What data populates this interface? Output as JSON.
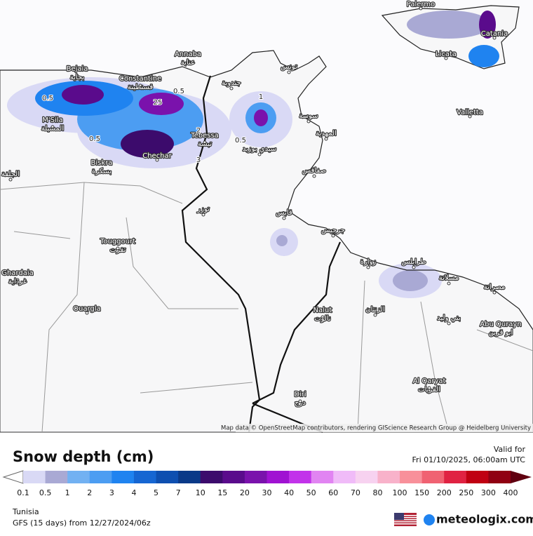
{
  "map": {
    "places": [
      {
        "name": "Palermo"
      },
      {
        "name": "Catania"
      },
      {
        "name": "Licata"
      },
      {
        "name": "Valletta"
      },
      {
        "name": "Annaba",
        "name_ar": "عنابة"
      },
      {
        "name": "Bejaia",
        "name_ar": "بجاية"
      },
      {
        "name": "Constantine",
        "name_ar": "قسنطينة"
      },
      {
        "name": "M'Sila",
        "name_ar": "المسيلة"
      },
      {
        "name": "Biskra",
        "name_ar": "بسكرة"
      },
      {
        "name": "Chechar"
      },
      {
        "name": "Tebessa",
        "name_ar": "تبسة"
      },
      {
        "name": "Touggourt",
        "name_ar": "تقرت"
      },
      {
        "name": "Ghardaia",
        "name_ar": "غرداية"
      },
      {
        "name": "Ouargla"
      },
      {
        "name": "Nalut",
        "name_ar": "نالوت"
      },
      {
        "name": "Al Qaryat",
        "name_ar": "القريات"
      },
      {
        "name": "Abu Qurayn",
        "name_ar": "ابو قرين"
      },
      {
        "name": "Diri",
        "name_ar": "درج"
      },
      {
        "name_ar": "تونس"
      },
      {
        "name_ar": "جندوبة"
      },
      {
        "name_ar": "سوسة"
      },
      {
        "name_ar": "المهدية"
      },
      {
        "name_ar": "سيدي بوزيد"
      },
      {
        "name_ar": "صفاقس"
      },
      {
        "name_ar": "توزر"
      },
      {
        "name_ar": "قابس"
      },
      {
        "name_ar": "جرجيس"
      },
      {
        "name_ar": "زوارة"
      },
      {
        "name_ar": "طرابلس"
      },
      {
        "name_ar": "مسلاتة"
      },
      {
        "name_ar": "مصراتة"
      },
      {
        "name_ar": "الزنتان"
      },
      {
        "name_ar": "بني وليد"
      },
      {
        "name_ar": "الجلفة"
      }
    ],
    "contour_labels": [
      "25",
      "0.5",
      "0.5",
      "2",
      "3",
      "0.5",
      "1",
      "0.5"
    ],
    "attribution": "Map data © OpenStreetMap contributors, rendering GIScience Research Group @ Heidelberg University"
  },
  "legend": {
    "title": "Snow depth (cm)",
    "ticks": [
      0.1,
      0.5,
      1,
      2,
      3,
      4,
      5,
      7,
      10,
      15,
      20,
      30,
      40,
      50,
      60,
      70,
      80,
      100,
      150,
      200,
      250,
      300,
      400
    ],
    "under_color": "#ffffff",
    "colors": [
      "#d9d9f5",
      "#a9a9d4",
      "#72b1f2",
      "#4c9df2",
      "#1f83f0",
      "#1666d2",
      "#0e4fb0",
      "#0a3a88",
      "#3c0b6c",
      "#5a0b8c",
      "#7a12ac",
      "#a012d2",
      "#c233ea",
      "#e184f2",
      "#f0bbf8",
      "#f7d2f0",
      "#f8b2ca",
      "#f8909a",
      "#f06272",
      "#e02242",
      "#c00012",
      "#900012"
    ],
    "over_color": "#600010"
  },
  "valid": {
    "label": "Valid for",
    "time": "Fri 01/10/2025, 06:00am UTC"
  },
  "region": "Tunisia",
  "model": "GFS (15 days) from  12/27/2024/06z",
  "brand": "meteologix.com"
}
